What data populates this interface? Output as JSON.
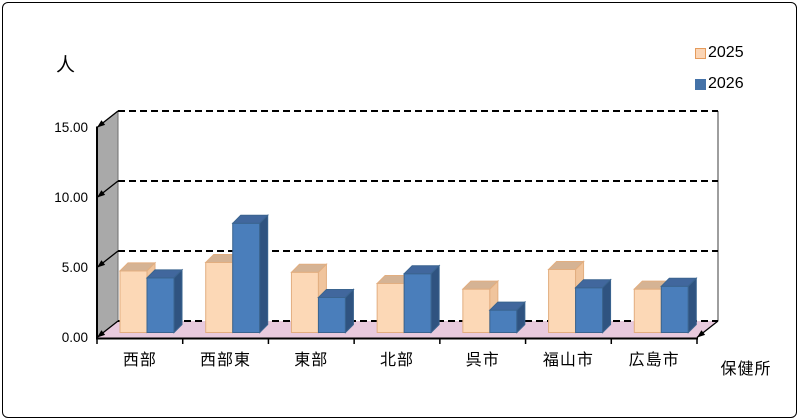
{
  "chart_data": {
    "type": "bar",
    "style": "3d-clustered-column",
    "y_axis_title": "人",
    "x_axis_title": "保健所",
    "categories": [
      "西部",
      "西部東",
      "東部",
      "北部",
      "呉市",
      "福山市",
      "広島市"
    ],
    "series": [
      {
        "name": "2025",
        "values": [
          4.4,
          5.0,
          4.3,
          3.5,
          3.1,
          4.5,
          3.1
        ],
        "front_color": "#FCD8B6",
        "top_color": "#D5B394",
        "side_color": "#F0C49C",
        "border_color": "#E2AE80",
        "legend_color": "#FBD5B5",
        "legend_border": "#E59B5C"
      },
      {
        "name": "2026",
        "values": [
          3.9,
          7.8,
          2.5,
          4.2,
          1.6,
          3.2,
          3.3
        ],
        "front_color": "#4A7EBB",
        "top_color": "#41679D",
        "side_color": "#2F5380",
        "border_color": "#3A648F",
        "legend_color": "#4472A8",
        "legend_border": "#4472A8"
      }
    ],
    "ylim": [
      0,
      15
    ],
    "y_ticks": [
      "0.00",
      "5.00",
      "10.00",
      "15.00"
    ],
    "y_tick_values": [
      0,
      5,
      10,
      15
    ],
    "grid": true,
    "gridline_color": "#000000",
    "gridline_style": "dashed",
    "legend_position": "top-right",
    "wall_color": "#A9A9A9",
    "wall_edge_color": "#6E6E6E",
    "back_wall_color": "#FFFFFF",
    "back_wall_edge_color": "#7F7F7F",
    "floor_color": "#E8CADD",
    "axis_color": "#000000"
  }
}
